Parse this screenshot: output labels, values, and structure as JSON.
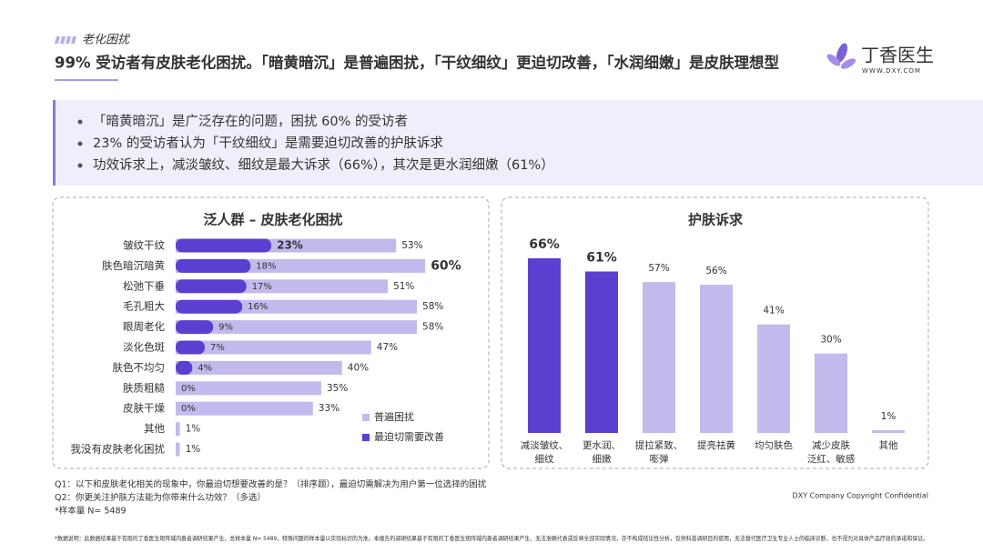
{
  "header": {
    "tag": "老化困扰",
    "title": "99% 受访者有皮肤老化困扰。「暗黄暗沉」是普遍困扰，「干纹细纹」更迫切改善，「水润细嫩」是皮肤理想型",
    "logo": "丁香医生",
    "logo_sub": "WWW.DXY.COM"
  },
  "bullets": [
    "「暗黄暗沉」是广泛存在的问题，困扰 60% 的受访者",
    "23% 的受访者认为「干纹细纹」是需要迫切改善的护肤诉求",
    "功效诉求上，减淡皱纹、细纹是最大诉求（66%），其次是更水润细嫩（61%）"
  ],
  "chart_data": [
    {
      "type": "bar",
      "orientation": "horizontal",
      "overlay": true,
      "title": "泛人群 – 皮肤老化困扰",
      "categories": [
        "皱纹干纹",
        "肤色暗沉暗黄",
        "松弛下垂",
        "毛孔粗大",
        "眼周老化",
        "淡化色斑",
        "肤色不均匀",
        "肤质粗糙",
        "皮肤干燥",
        "其他",
        "我没有皮肤老化困扰"
      ],
      "series": [
        {
          "name": "普遍困扰",
          "color": "#c3b9ec",
          "values": [
            53,
            60,
            51,
            58,
            58,
            47,
            40,
            35,
            33,
            1,
            1
          ],
          "value_labels": [
            "53%",
            "60%",
            "51%",
            "58%",
            "58%",
            "47%",
            "40%",
            "35%",
            "33%",
            "1%",
            "1%"
          ]
        },
        {
          "name": "最迫切需要改善",
          "color": "#5b3fd0",
          "values": [
            23,
            18,
            17,
            16,
            9,
            7,
            4,
            0,
            0,
            null,
            null
          ],
          "value_labels": [
            "23%",
            "18%",
            "17%",
            "16%",
            "9%",
            "7%",
            "4%",
            "0%",
            "0%",
            null,
            null
          ]
        }
      ],
      "legend": "lower right"
    },
    {
      "type": "bar",
      "title": "护肤诉求",
      "categories": [
        "减淡皱纹、\n细纹",
        "更水润、\n细嫩",
        "提拉紧致、\n嘭弹",
        "提亮祛黄",
        "均匀肤色",
        "减少皮肤\n泛红、敏感",
        "其他"
      ],
      "values": [
        66,
        61,
        57,
        56,
        41,
        30,
        1
      ],
      "value_labels": [
        "66%",
        "61%",
        "57%",
        "56%",
        "41%",
        "30%",
        "1%"
      ],
      "colors": [
        "#5b3fd0",
        "#5b3fd0",
        "#c3b9ec",
        "#c3b9ec",
        "#c3b9ec",
        "#c3b9ec",
        "#c3b9ec"
      ]
    }
  ],
  "footer": {
    "notes": [
      "Q1：以下和皮肤老化相关的现象中，你最迫切想要改善的是？（排序题），最迫切需解决为用户第一位选择的困扰",
      "Q2：你更关注护肤方法能为你带来什么功效？（多选）",
      "*样本量 N= 5489"
    ],
    "disclaimer": "*数据说明：此数据结果基于有限的丁香医生矩阵域内患者调研结果产生，总样本量 N= 5489，特殊问题的样本量以实际标识的为准。本报告的调研结果基于有限的丁香医生矩阵域内患者调研结果产生，无法准确代表或反映全部实际情况，亦不构成结论性分析，仅供科普调研目的使用，无法替代医疗卫生专业人士的临床诊断，也不视为对具体产品疗效的承诺和保证。",
    "copyright": "DXY Company Copyright Confidential"
  }
}
